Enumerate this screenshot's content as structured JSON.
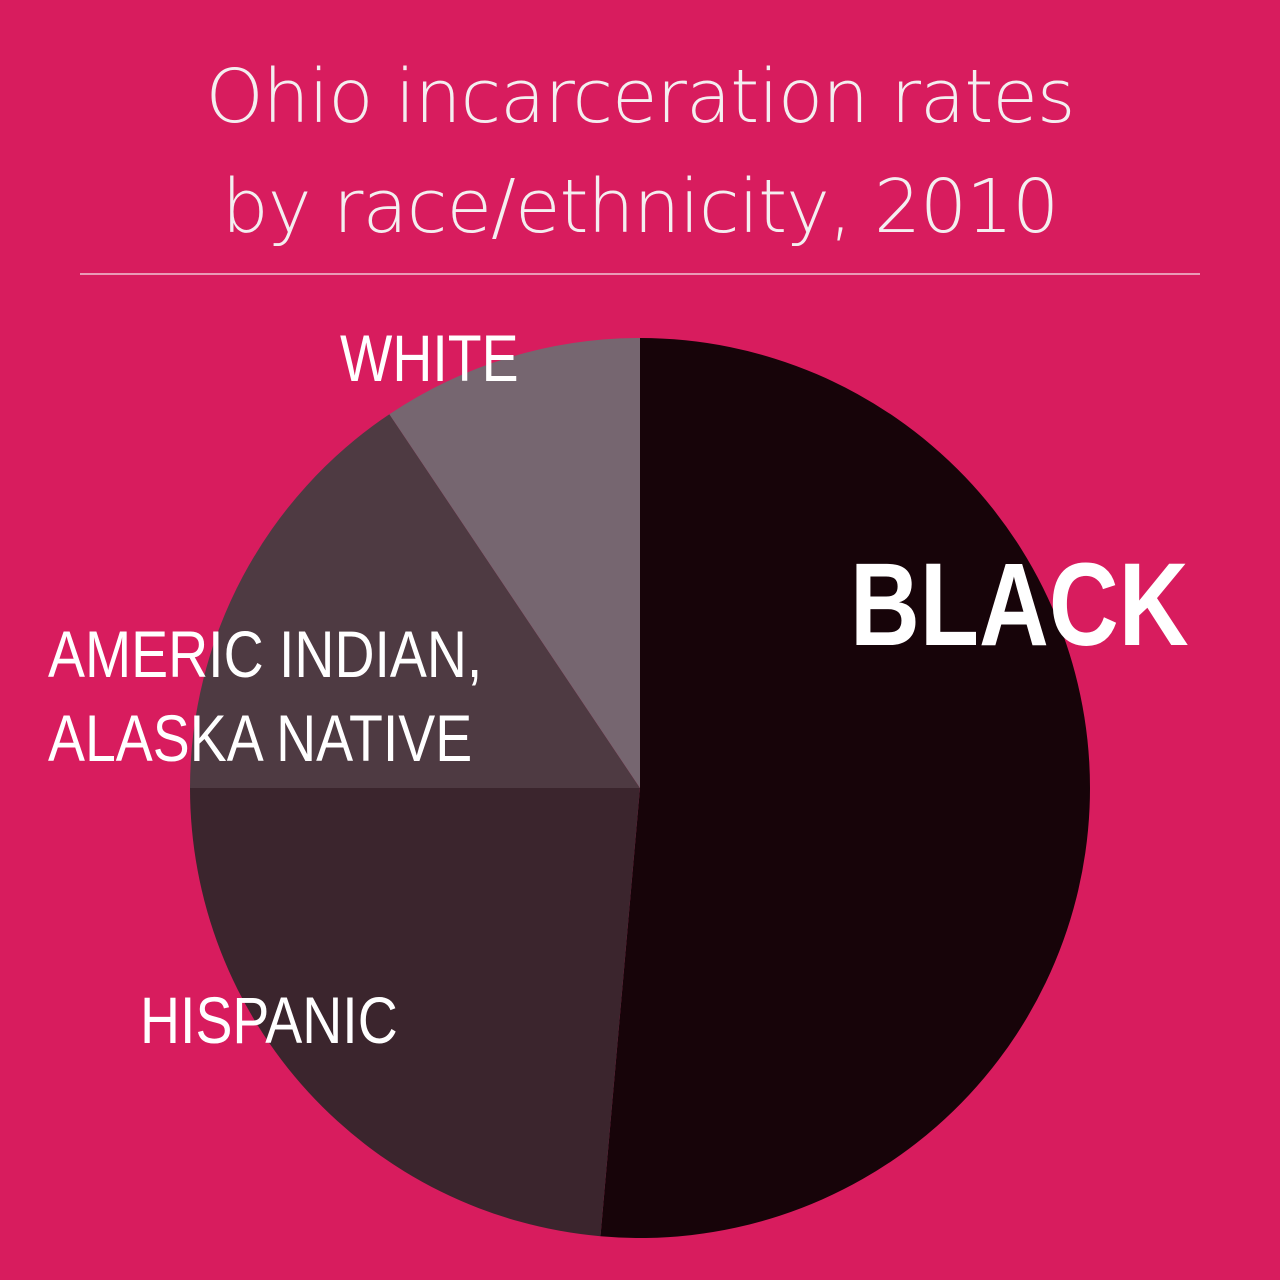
{
  "chart_data": {
    "type": "pie",
    "title": "Ohio incarceration rates\nby race/ethnicity, 2010",
    "categories": [
      "BLACK",
      "HISPANIC",
      "AMERIC INDIAN,\nALASKA NATIVE",
      "WHITE"
    ],
    "values": [
      51.4,
      23.6,
      15.6,
      9.4
    ],
    "colors": [
      "#170409",
      "#3b252d",
      "#4e3a42",
      "#766670"
    ]
  }
}
